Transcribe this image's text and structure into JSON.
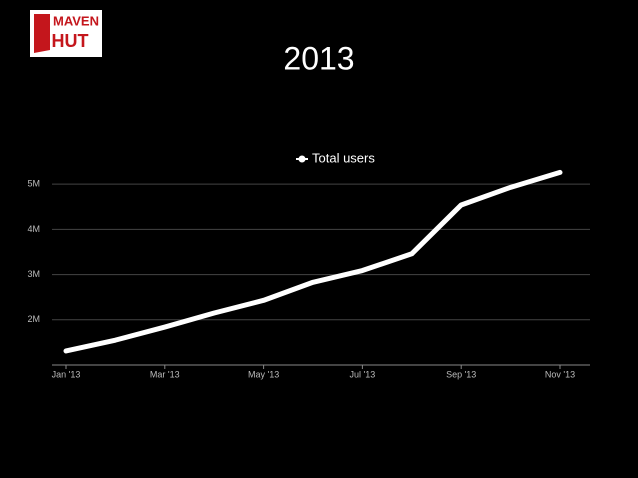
{
  "logo": {
    "line1": "MAVEN",
    "line2": "HUT"
  },
  "chart_data": {
    "type": "line",
    "title": "2013",
    "x": [
      "2013-01",
      "2013-02",
      "2013-03",
      "2013-04",
      "2013-05",
      "2013-06",
      "2013-07",
      "2013-08",
      "2013-09",
      "2013-10",
      "2013-11"
    ],
    "series": [
      {
        "name": "Total users",
        "color": "#ffffff",
        "values": [
          1310000,
          1550000,
          1840000,
          2150000,
          2430000,
          2830000,
          3090000,
          3460000,
          4540000,
          4930000,
          5260000
        ]
      }
    ],
    "xticks": [
      {
        "value": "2013-01",
        "label": "Jan '13"
      },
      {
        "value": "2013-03",
        "label": "Mar '13"
      },
      {
        "value": "2013-05",
        "label": "May '13"
      },
      {
        "value": "2013-07",
        "label": "Jul '13"
      },
      {
        "value": "2013-09",
        "label": "Sep '13"
      },
      {
        "value": "2013-11",
        "label": "Nov '13"
      }
    ],
    "ylim": [
      1000000,
      5800000
    ],
    "yticks": [
      {
        "value": 2000000,
        "label": "2M"
      },
      {
        "value": 3000000,
        "label": "3M"
      },
      {
        "value": 4000000,
        "label": "4M"
      },
      {
        "value": 5000000,
        "label": "5M"
      }
    ],
    "grid": true,
    "legend": "top"
  }
}
